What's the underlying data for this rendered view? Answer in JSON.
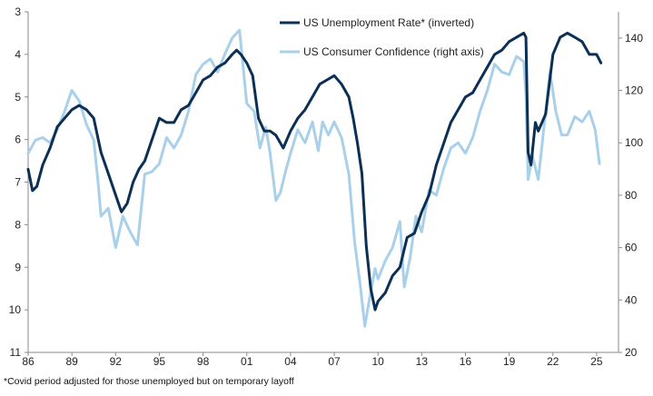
{
  "chart_data": {
    "type": "line",
    "title": "",
    "footnote": "*Covid period adjusted for those unemployed but on temporary layoff",
    "x_tick_labels": [
      "86",
      "89",
      "92",
      "95",
      "98",
      "01",
      "04",
      "07",
      "10",
      "13",
      "16",
      "19",
      "22",
      "25"
    ],
    "x_ticks_year": [
      1986,
      1989,
      1992,
      1995,
      1998,
      2001,
      2004,
      2007,
      2010,
      2013,
      2016,
      2019,
      2022,
      2025
    ],
    "xlim": [
      1986,
      2026.5
    ],
    "left_axis": {
      "min": 3,
      "max": 11,
      "inverted": true,
      "ticks": [
        3,
        4,
        5,
        6,
        7,
        8,
        9,
        10,
        11
      ]
    },
    "right_axis": {
      "min": 20,
      "max": 150,
      "ticks": [
        20,
        40,
        60,
        80,
        100,
        120,
        140
      ]
    },
    "grid": false,
    "legend_position": "top-right",
    "colors": {
      "unemployment": "#0b2f55",
      "confidence": "#a9d0ea"
    },
    "series": [
      {
        "name": "US Unemployment Rate* (inverted)",
        "axis": "left",
        "x": [
          1986.0,
          1986.3,
          1986.6,
          1987.0,
          1987.5,
          1988.0,
          1988.5,
          1989.0,
          1989.5,
          1990.0,
          1990.5,
          1991.0,
          1991.5,
          1992.0,
          1992.4,
          1992.8,
          1993.2,
          1993.6,
          1994.0,
          1994.5,
          1995.0,
          1995.5,
          1996.0,
          1996.5,
          1997.0,
          1997.5,
          1998.0,
          1998.5,
          1999.0,
          1999.5,
          2000.0,
          2000.3,
          2000.6,
          2001.0,
          2001.4,
          2001.8,
          2002.2,
          2002.6,
          2003.0,
          2003.5,
          2004.0,
          2004.5,
          2005.0,
          2005.5,
          2006.0,
          2006.5,
          2007.0,
          2007.5,
          2008.0,
          2008.3,
          2008.6,
          2008.9,
          2009.2,
          2009.5,
          2009.8,
          2010.0,
          2010.5,
          2011.0,
          2011.5,
          2012.0,
          2012.5,
          2013.0,
          2013.5,
          2014.0,
          2014.5,
          2015.0,
          2015.5,
          2016.0,
          2016.5,
          2017.0,
          2017.5,
          2018.0,
          2018.5,
          2019.0,
          2019.5,
          2020.0,
          2020.15,
          2020.3,
          2020.5,
          2020.8,
          2021.0,
          2021.5,
          2022.0,
          2022.5,
          2023.0,
          2023.5,
          2024.0,
          2024.5,
          2025.0,
          2025.3
        ],
        "values": [
          6.7,
          7.2,
          7.1,
          6.6,
          6.2,
          5.7,
          5.5,
          5.3,
          5.2,
          5.3,
          5.5,
          6.3,
          6.8,
          7.3,
          7.7,
          7.5,
          7.0,
          6.7,
          6.5,
          6.0,
          5.5,
          5.6,
          5.6,
          5.3,
          5.2,
          4.9,
          4.6,
          4.5,
          4.3,
          4.2,
          4.0,
          3.9,
          4.0,
          4.2,
          4.5,
          5.5,
          5.8,
          5.8,
          5.9,
          6.2,
          5.8,
          5.5,
          5.3,
          5.0,
          4.7,
          4.6,
          4.5,
          4.7,
          5.0,
          5.5,
          6.1,
          6.8,
          8.5,
          9.5,
          10.0,
          9.8,
          9.6,
          9.2,
          9.0,
          8.3,
          8.2,
          7.7,
          7.3,
          6.6,
          6.1,
          5.6,
          5.3,
          5.0,
          4.9,
          4.6,
          4.3,
          4.0,
          3.9,
          3.7,
          3.6,
          3.5,
          3.6,
          6.3,
          6.6,
          5.6,
          5.8,
          5.4,
          4.0,
          3.6,
          3.5,
          3.6,
          3.7,
          4.0,
          4.0,
          4.2
        ]
      },
      {
        "name": "US Consumer Confidence (right axis)",
        "axis": "right",
        "x": [
          1986.0,
          1986.5,
          1987.0,
          1987.5,
          1988.0,
          1988.5,
          1989.0,
          1989.5,
          1990.0,
          1990.5,
          1990.8,
          1991.0,
          1991.5,
          1992.0,
          1992.5,
          1993.0,
          1993.5,
          1994.0,
          1994.5,
          1995.0,
          1995.5,
          1996.0,
          1996.5,
          1997.0,
          1997.5,
          1998.0,
          1998.5,
          1999.0,
          1999.5,
          2000.0,
          2000.5,
          2001.0,
          2001.5,
          2001.9,
          2002.3,
          2002.6,
          2003.0,
          2003.3,
          2003.7,
          2004.0,
          2004.5,
          2005.0,
          2005.5,
          2005.9,
          2006.2,
          2006.6,
          2007.0,
          2007.5,
          2008.0,
          2008.4,
          2008.8,
          2009.1,
          2009.4,
          2009.8,
          2010.0,
          2010.5,
          2011.0,
          2011.5,
          2011.8,
          2012.2,
          2012.6,
          2013.0,
          2013.5,
          2014.0,
          2014.5,
          2015.0,
          2015.5,
          2016.0,
          2016.5,
          2017.0,
          2017.5,
          2018.0,
          2018.5,
          2019.0,
          2019.5,
          2020.0,
          2020.15,
          2020.3,
          2020.6,
          2021.0,
          2021.5,
          2021.8,
          2022.2,
          2022.6,
          2023.0,
          2023.5,
          2024.0,
          2024.5,
          2024.9,
          2025.2
        ],
        "values": [
          96,
          101,
          102,
          100,
          105,
          112,
          120,
          116,
          107,
          101,
          85,
          72,
          75,
          60,
          72,
          66,
          61,
          88,
          89,
          92,
          102,
          98,
          103,
          112,
          126,
          130,
          132,
          127,
          134,
          140,
          143,
          115,
          112,
          98,
          106,
          96,
          78,
          81,
          90,
          96,
          105,
          100,
          108,
          97,
          108,
          103,
          108,
          102,
          88,
          62,
          45,
          30,
          40,
          52,
          48,
          55,
          60,
          70,
          45,
          56,
          72,
          66,
          82,
          80,
          90,
          98,
          100,
          96,
          102,
          112,
          120,
          130,
          127,
          126,
          133,
          131,
          118,
          86,
          95,
          86,
          112,
          127,
          112,
          103,
          103,
          110,
          108,
          112,
          105,
          92
        ]
      }
    ]
  }
}
